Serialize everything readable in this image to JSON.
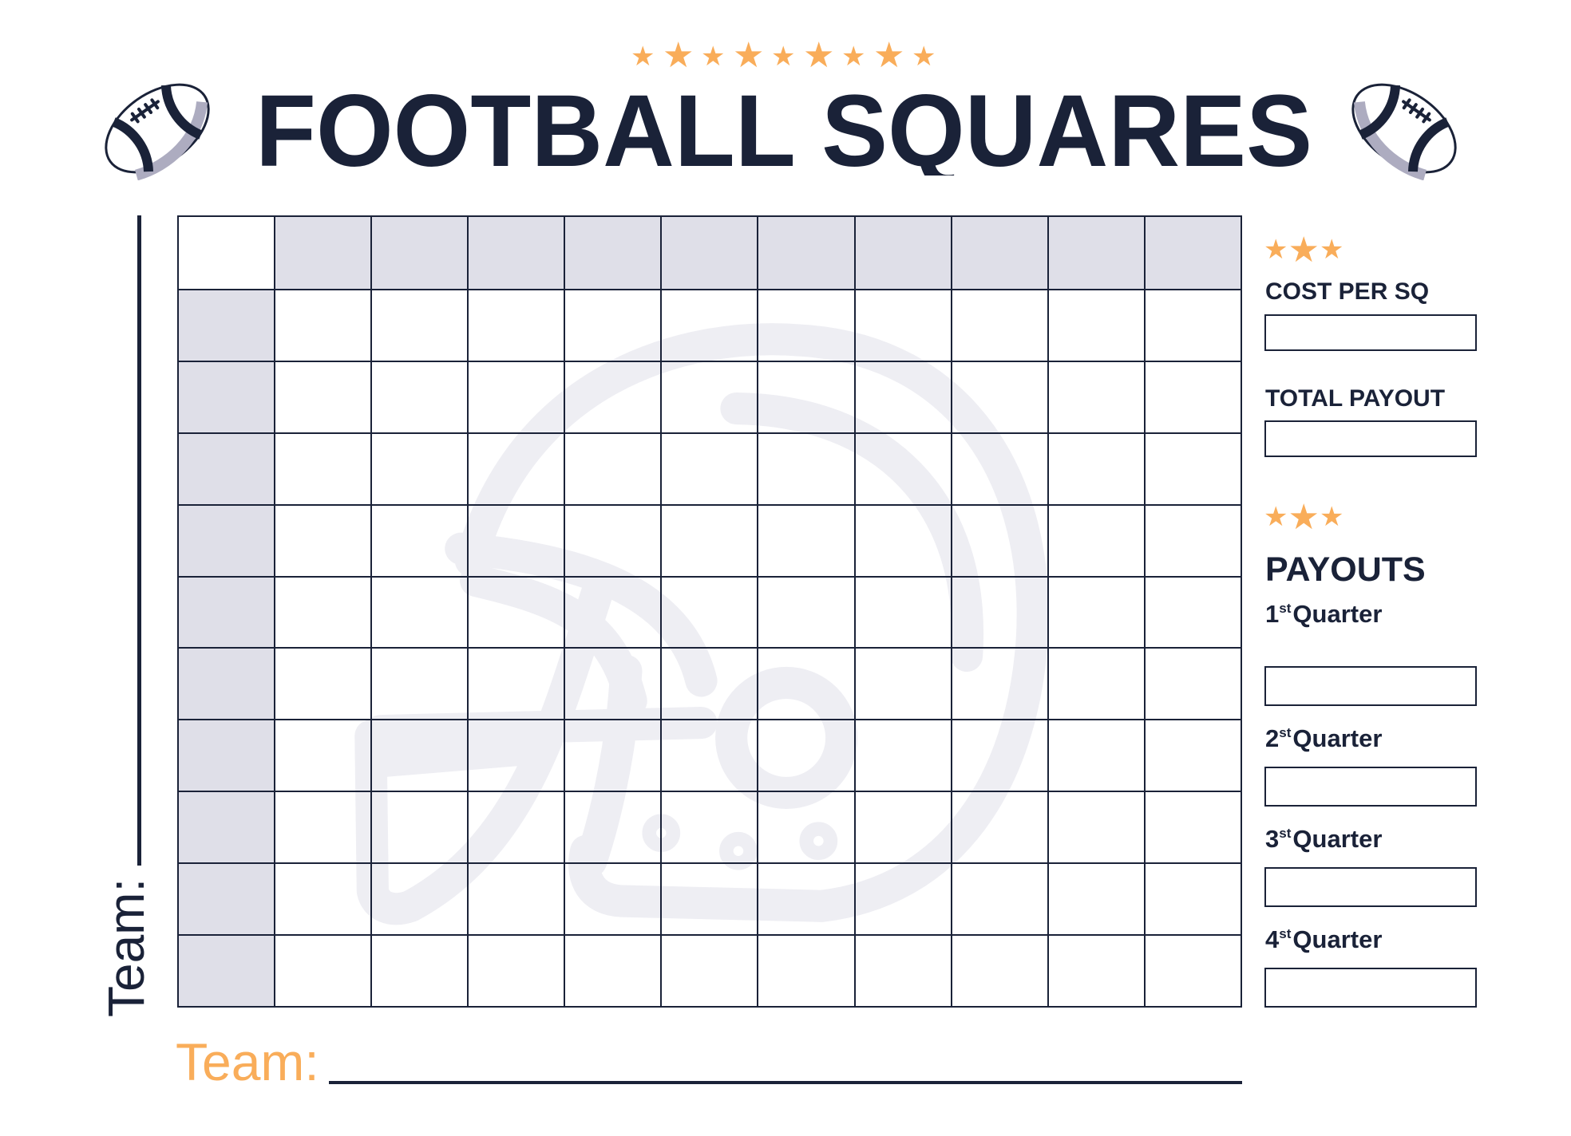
{
  "title": "FOOTBALL SQUARES",
  "colors": {
    "navy": "#1a2238",
    "header_fill": "#dfdfe8",
    "accent": "#f9ad5a",
    "watermark": "#eeeef3"
  },
  "icons": [
    "football-icon",
    "star-icon",
    "helmet-watermark"
  ],
  "grid": {
    "columns": 10,
    "rows": 10
  },
  "side_team_label": "Team:",
  "bottom_team_label": "Team:",
  "panel": {
    "cost_label": "COST PER SQ",
    "cost_value": "",
    "total_label": "TOTAL PAYOUT",
    "total_value": "",
    "payouts_title": "PAYOUTS",
    "quarters": [
      {
        "num": "1",
        "suffix": "st",
        "word": "Quarter",
        "value": ""
      },
      {
        "num": "2",
        "suffix": "st",
        "word": "Quarter",
        "value": ""
      },
      {
        "num": "3",
        "suffix": "st",
        "word": "Quarter",
        "value": ""
      },
      {
        "num": "4",
        "suffix": "st",
        "word": "Quarter",
        "value": ""
      }
    ]
  }
}
